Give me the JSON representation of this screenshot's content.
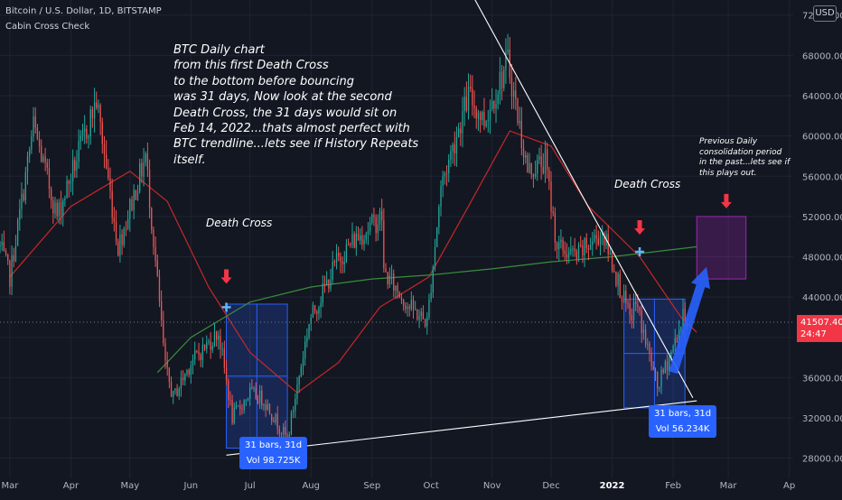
{
  "header": {
    "symbol": "Bitcoin / U.S. Dollar, 1D, BITSTAMP",
    "indicator": "Cabin Cross Check",
    "currency_button": "USD"
  },
  "annotations": {
    "main_note": "BTC Daily chart\nfrom this first Death Cross\nto the bottom before bouncing\nwas 31 days, Now look at the second\nDeath Cross, the 31 days would sit on\nFeb 14, 2022...thats almost perfect with\nBTC trendline...lets see if History Repeats\nitself.",
    "death_cross_1": "Death Cross",
    "death_cross_2": "Death Cross",
    "consolidation_note": "Previous Daily\nconsolidation period\nin the past...lets see if\nthis plays out.",
    "range1_bars": "31 bars, 31d",
    "range1_vol": "Vol 98.725K",
    "range2_bars": "31 bars, 31d",
    "range2_vol": "Vol 56.234K"
  },
  "price_tag": {
    "price": "41507.40",
    "countdown": "24:47",
    "color": "#f23645"
  },
  "colors": {
    "background": "#131722",
    "up": "#26a69a",
    "down": "#ef5350",
    "ma_short": "#c62828",
    "ma_long": "#388e3c",
    "range_box": "#2962ff",
    "zone": "#9c27b0",
    "arrow_marker": "#f23645",
    "projection_arrow": "#2962ff",
    "trendline": "#ffffff"
  },
  "chart_data": {
    "type": "candlestick",
    "title": "Bitcoin / U.S. Dollar, 1D, BITSTAMP",
    "y_axis": {
      "ticks": [
        28000,
        32000,
        36000,
        40000,
        44000,
        48000,
        52000,
        56000,
        60000,
        64000,
        68000,
        72000
      ],
      "tick_labels": [
        "28000.00",
        "32000.00",
        "36000.00",
        "40000.00",
        "44000.00",
        "48000.00",
        "52000.00",
        "56000.00",
        "60000.00",
        "64000.00",
        "68000.00",
        "72000.00"
      ],
      "range": [
        26000,
        73500
      ]
    },
    "x_axis": {
      "range": [
        "2021-02-24",
        "2022-04-03"
      ],
      "ticks": [
        "2021-03-01",
        "2021-04-01",
        "2021-05-01",
        "2021-06-01",
        "2021-07-01",
        "2021-08-01",
        "2021-09-01",
        "2021-10-01",
        "2021-11-01",
        "2021-12-01",
        "2022-01-01",
        "2022-02-01",
        "2022-03-01",
        "2022-04-01"
      ],
      "tick_labels": [
        "Mar",
        "Apr",
        "May",
        "Jun",
        "Jul",
        "Aug",
        "Sep",
        "Oct",
        "Nov",
        "Dec",
        "2022",
        "Feb",
        "Mar",
        "Ap"
      ]
    },
    "price_anchors": [
      [
        "2021-02-24",
        49000
      ],
      [
        "2021-03-01",
        46000
      ],
      [
        "2021-03-13",
        61000
      ],
      [
        "2021-03-25",
        52000
      ],
      [
        "2021-04-14",
        63500
      ],
      [
        "2021-04-25",
        49000
      ],
      [
        "2021-05-09",
        58000
      ],
      [
        "2021-05-19",
        37000
      ],
      [
        "2021-05-23",
        34000
      ],
      [
        "2021-06-01",
        37500
      ],
      [
        "2021-06-15",
        40500
      ],
      [
        "2021-06-22",
        32000
      ],
      [
        "2021-07-01",
        34500
      ],
      [
        "2021-07-08",
        33800
      ],
      [
        "2021-07-20",
        29800
      ],
      [
        "2021-07-31",
        41500
      ],
      [
        "2021-08-14",
        47500
      ],
      [
        "2021-08-22",
        49500
      ],
      [
        "2021-09-06",
        52000
      ],
      [
        "2021-09-07",
        46500
      ],
      [
        "2021-09-20",
        43000
      ],
      [
        "2021-09-29",
        41500
      ],
      [
        "2021-10-06",
        55000
      ],
      [
        "2021-10-20",
        64000
      ],
      [
        "2021-10-28",
        61500
      ],
      [
        "2021-11-09",
        67500
      ],
      [
        "2021-11-19",
        56500
      ],
      [
        "2021-11-28",
        57500
      ],
      [
        "2021-12-04",
        49000
      ],
      [
        "2021-12-14",
        48000
      ],
      [
        "2021-12-27",
        50500
      ],
      [
        "2022-01-10",
        41800
      ],
      [
        "2022-01-13",
        43500
      ],
      [
        "2022-01-24",
        35000
      ],
      [
        "2022-01-31",
        38500
      ],
      [
        "2022-02-07",
        42500
      ],
      [
        "2022-02-08",
        41507
      ]
    ],
    "moving_averages": [
      {
        "name": "MA short",
        "points": [
          [
            "2021-03-01",
            46000
          ],
          [
            "2021-04-01",
            53000
          ],
          [
            "2021-05-01",
            56500
          ],
          [
            "2021-05-20",
            53500
          ],
          [
            "2021-06-10",
            45000
          ],
          [
            "2021-07-01",
            38500
          ],
          [
            "2021-07-25",
            34500
          ],
          [
            "2021-08-15",
            37500
          ],
          [
            "2021-09-05",
            43000
          ],
          [
            "2021-09-30",
            46000
          ],
          [
            "2021-10-20",
            53000
          ],
          [
            "2021-11-10",
            60500
          ],
          [
            "2021-12-01",
            59000
          ],
          [
            "2021-12-20",
            53000
          ],
          [
            "2022-01-15",
            48000
          ],
          [
            "2022-02-05",
            42000
          ],
          [
            "2022-02-13",
            40500
          ]
        ]
      },
      {
        "name": "MA long",
        "points": [
          [
            "2021-05-15",
            36500
          ],
          [
            "2021-06-01",
            40000
          ],
          [
            "2021-07-01",
            43500
          ],
          [
            "2021-08-01",
            45000
          ],
          [
            "2021-09-01",
            45800
          ],
          [
            "2021-10-01",
            46200
          ],
          [
            "2021-11-01",
            46800
          ],
          [
            "2021-12-01",
            47500
          ],
          [
            "2022-01-01",
            48000
          ],
          [
            "2022-02-13",
            49000
          ]
        ]
      }
    ],
    "death_cross_markers": [
      [
        "2021-06-19",
        43000
      ],
      [
        "2022-01-15",
        48500
      ]
    ],
    "measure_ranges": [
      {
        "from": "2021-06-19",
        "to": "2021-07-20",
        "high": 43300,
        "low": 29000
      },
      {
        "from": "2022-01-07",
        "to": "2022-02-07",
        "high": 43800,
        "low": 33000
      }
    ],
    "consolidation_zone": {
      "from": "2022-02-13",
      "to": "2022-03-10",
      "high": 52000,
      "low": 45800
    },
    "trendlines": [
      {
        "from": [
          "2021-06-19",
          28300
        ],
        "to": [
          "2022-02-13",
          33700
        ]
      },
      {
        "from": [
          "2021-10-22",
          74000
        ],
        "to": [
          "2022-02-11",
          34000
        ]
      }
    ],
    "projection_arrow": {
      "from": [
        "2022-02-01",
        36500
      ],
      "to": [
        "2022-02-18",
        47000
      ]
    },
    "current_price_line": 41507.4
  }
}
